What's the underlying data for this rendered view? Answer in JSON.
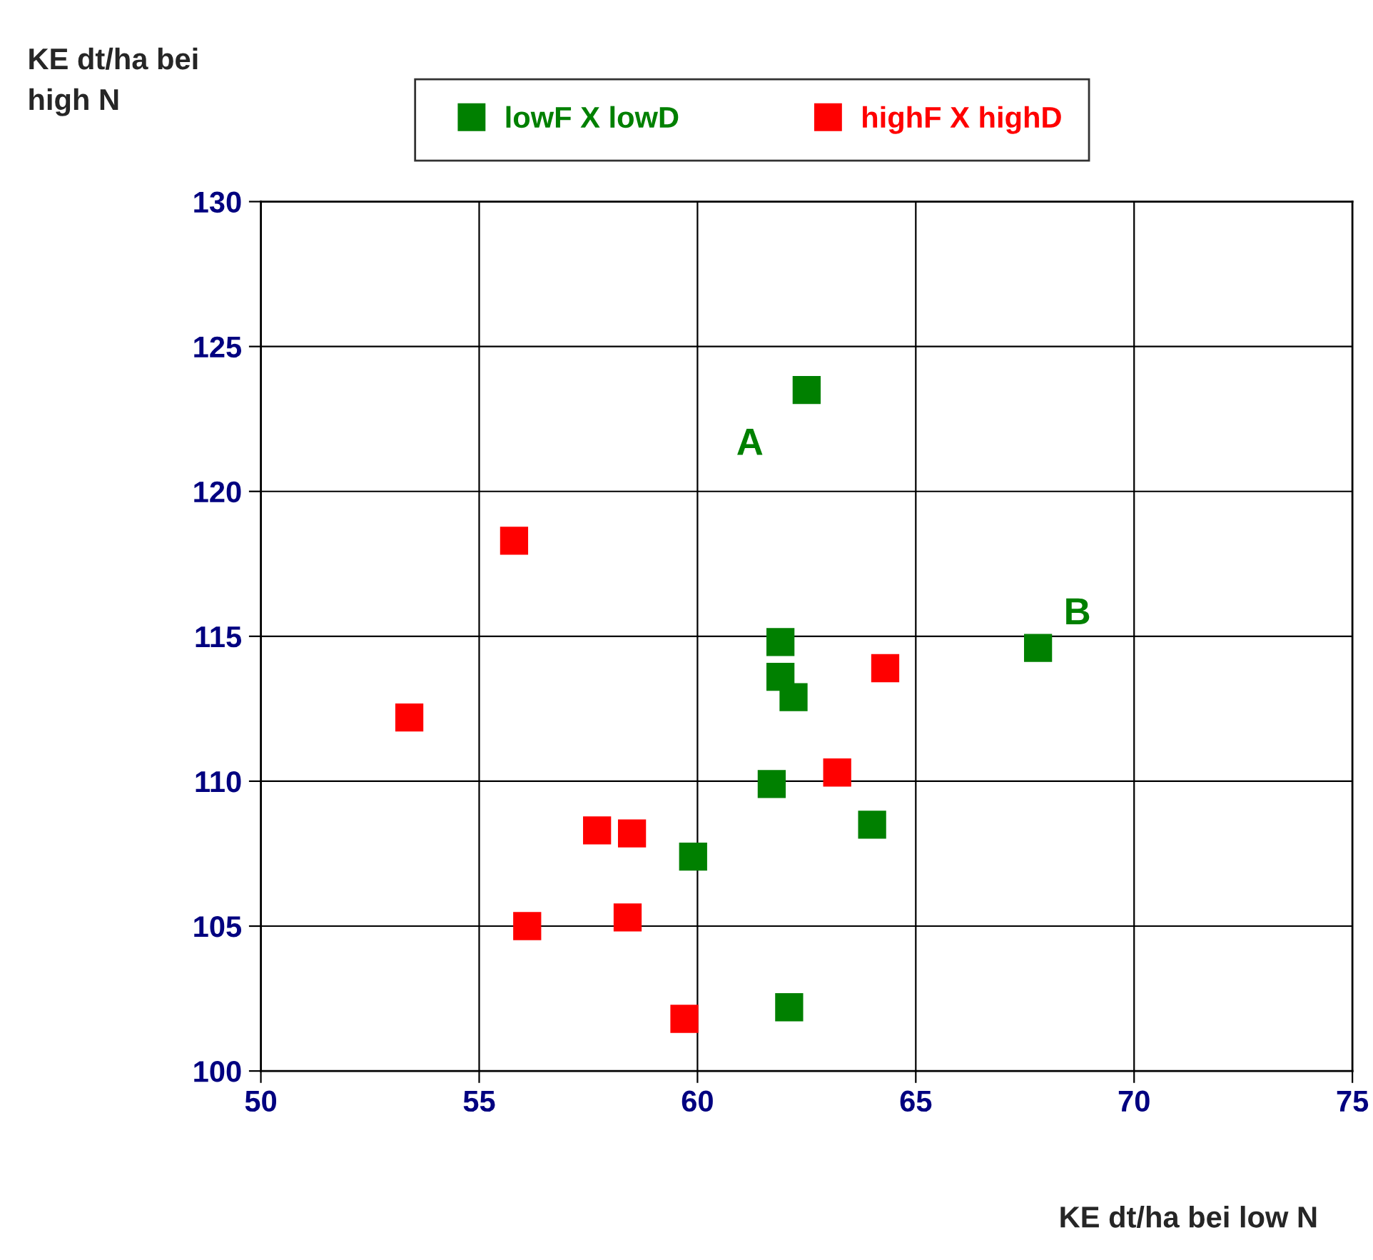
{
  "chart_data": {
    "type": "scatter",
    "xlabel": "KE dt/ha bei low N",
    "ylabel": "KE dt/ha bei\nhigh N",
    "xlim": [
      50,
      75
    ],
    "xticks": [
      50,
      55,
      60,
      65,
      70,
      75
    ],
    "ylim": [
      100,
      130
    ],
    "yticks": [
      100,
      105,
      110,
      115,
      120,
      125,
      130
    ],
    "grid": true,
    "legend": "top",
    "marker": "square",
    "series": [
      {
        "name": "lowF X lowD",
        "color": "#008000",
        "x": [
          62.5,
          61.9,
          61.9,
          62.2,
          67.8,
          61.7,
          64.0,
          59.9,
          62.1
        ],
        "values": [
          123.5,
          114.8,
          113.6,
          112.9,
          114.6,
          109.9,
          108.5,
          107.4,
          102.2
        ]
      },
      {
        "name": "highF X highD",
        "color": "#ff0000",
        "x": [
          55.8,
          53.4,
          64.3,
          63.2,
          57.7,
          58.5,
          56.1,
          58.4,
          59.7
        ],
        "values": [
          118.3,
          112.2,
          113.9,
          110.3,
          108.3,
          108.2,
          105.0,
          105.3,
          101.8
        ]
      }
    ],
    "annotations": [
      "A",
      "B"
    ]
  }
}
